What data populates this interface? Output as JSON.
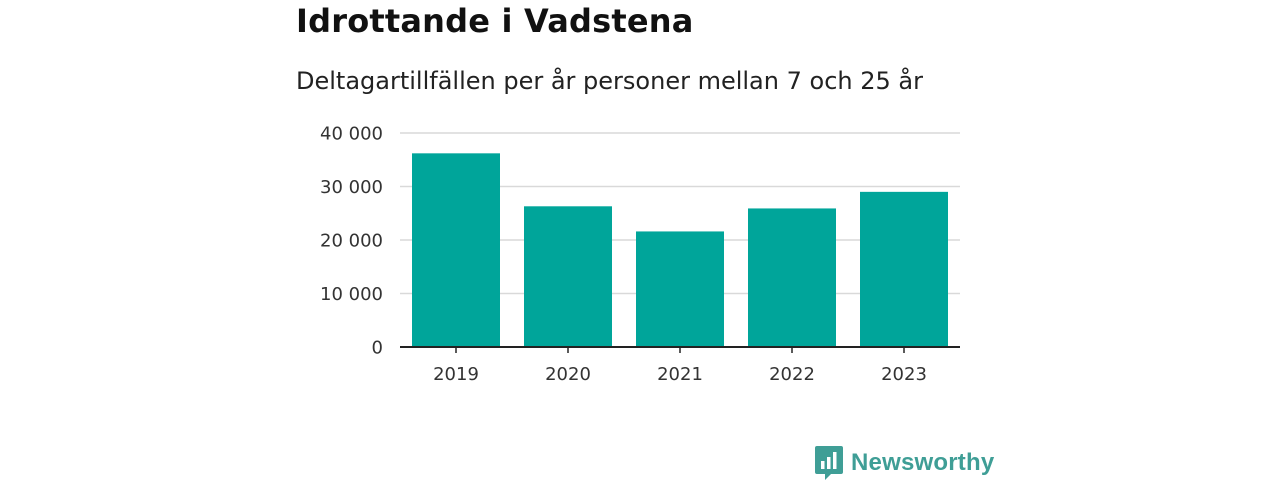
{
  "title": "Idrottande i Vadstena",
  "subtitle": "Deltagartillfällen per år personer mellan 7 och 25 år",
  "brand": {
    "name": "Newsworthy",
    "color": "#3f9e96",
    "icon": "newsworthy-chart-logo-icon"
  },
  "colors": {
    "bar": "#00a59a",
    "grid": "#d9d9d9",
    "axis": "#222222"
  },
  "chart_data": {
    "type": "bar",
    "categories": [
      "2019",
      "2020",
      "2021",
      "2022",
      "2023"
    ],
    "values": [
      36200,
      26300,
      21600,
      25900,
      29000
    ],
    "ylim": [
      0,
      40000
    ],
    "yticks": [
      0,
      10000,
      20000,
      30000,
      40000
    ],
    "ytick_labels": [
      "0",
      "10 000",
      "20 000",
      "30 000",
      "40 000"
    ],
    "grid": true,
    "xlabel": "",
    "ylabel": ""
  }
}
